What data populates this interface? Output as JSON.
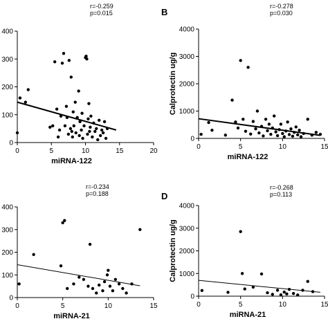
{
  "chart_data": [
    {
      "type": "scatter",
      "panel_label": "",
      "stats": [
        "r=-0.259",
        "p=0.015"
      ],
      "xlabel": "miRNA-122",
      "ylabel": "",
      "xlim": [
        0,
        20
      ],
      "ylim": [
        0,
        400
      ],
      "xticks": [
        "0",
        "5",
        "10",
        "15",
        "20"
      ],
      "yticks": [
        "0",
        "100",
        "200",
        "300",
        "400"
      ],
      "grid": false,
      "trend": {
        "x": [
          0,
          14.5
        ],
        "y": [
          145,
          45
        ],
        "width": 2
      },
      "points": [
        [
          0,
          35
        ],
        [
          0.4,
          160
        ],
        [
          1.2,
          145
        ],
        [
          1.6,
          190
        ],
        [
          4.8,
          55
        ],
        [
          5.2,
          60
        ],
        [
          5.5,
          290
        ],
        [
          5.8,
          120
        ],
        [
          6,
          20
        ],
        [
          6.2,
          45
        ],
        [
          6.4,
          95
        ],
        [
          6.6,
          285
        ],
        [
          6.8,
          320
        ],
        [
          7,
          60
        ],
        [
          7.2,
          130
        ],
        [
          7.3,
          90
        ],
        [
          7.5,
          30
        ],
        [
          7.6,
          295
        ],
        [
          7.8,
          50
        ],
        [
          7.9,
          235
        ],
        [
          8,
          40
        ],
        [
          8.1,
          20
        ],
        [
          8.2,
          110
        ],
        [
          8.3,
          60
        ],
        [
          8.5,
          145
        ],
        [
          8.6,
          35
        ],
        [
          8.8,
          90
        ],
        [
          9,
          185
        ],
        [
          9.1,
          25
        ],
        [
          9.2,
          75
        ],
        [
          9.4,
          45
        ],
        [
          9.5,
          105
        ],
        [
          9.6,
          15
        ],
        [
          9.8,
          60
        ],
        [
          10,
          305
        ],
        [
          10.1,
          310
        ],
        [
          10.2,
          300
        ],
        [
          10.3,
          30
        ],
        [
          10.4,
          85
        ],
        [
          10.5,
          140
        ],
        [
          10.6,
          40
        ],
        [
          10.7,
          55
        ],
        [
          10.8,
          95
        ],
        [
          11,
          20
        ],
        [
          11.2,
          70
        ],
        [
          11.4,
          40
        ],
        [
          11.6,
          50
        ],
        [
          11.8,
          10
        ],
        [
          12,
          80
        ],
        [
          12.2,
          25
        ],
        [
          12.4,
          45
        ],
        [
          12.6,
          35
        ],
        [
          12.8,
          75
        ],
        [
          13,
          15
        ],
        [
          13.2,
          50
        ]
      ]
    },
    {
      "type": "scatter",
      "panel_label": "B",
      "stats": [
        "r=-0.278",
        "p=0.030"
      ],
      "xlabel": "miRNA-122",
      "ylabel": "Calprotectin ug/g",
      "xlim": [
        0,
        15
      ],
      "ylim": [
        0,
        4000
      ],
      "xticks": [
        "0",
        "5",
        "10",
        "15"
      ],
      "yticks": [
        "0",
        "1000",
        "2000",
        "3000",
        "4000"
      ],
      "grid": false,
      "trend": {
        "x": [
          0,
          14.5
        ],
        "y": [
          720,
          110
        ],
        "width": 2
      },
      "points": [
        [
          0.3,
          150
        ],
        [
          1.2,
          580
        ],
        [
          1.6,
          300
        ],
        [
          3.2,
          120
        ],
        [
          4,
          1400
        ],
        [
          4.4,
          600
        ],
        [
          4.7,
          380
        ],
        [
          5,
          2850
        ],
        [
          5.3,
          700
        ],
        [
          5.6,
          260
        ],
        [
          5.9,
          2600
        ],
        [
          6.2,
          160
        ],
        [
          6.5,
          620
        ],
        [
          6.8,
          350
        ],
        [
          7,
          1000
        ],
        [
          7.2,
          200
        ],
        [
          7.5,
          440
        ],
        [
          7.7,
          90
        ],
        [
          8,
          700
        ],
        [
          8.2,
          280
        ],
        [
          8.4,
          520
        ],
        [
          8.6,
          150
        ],
        [
          8.8,
          380
        ],
        [
          9,
          820
        ],
        [
          9.2,
          240
        ],
        [
          9.4,
          100
        ],
        [
          9.6,
          320
        ],
        [
          9.8,
          520
        ],
        [
          10,
          180
        ],
        [
          10.2,
          60
        ],
        [
          10.4,
          270
        ],
        [
          10.6,
          600
        ],
        [
          10.8,
          140
        ],
        [
          11,
          350
        ],
        [
          11.2,
          80
        ],
        [
          11.4,
          220
        ],
        [
          11.6,
          420
        ],
        [
          11.8,
          130
        ],
        [
          12,
          300
        ],
        [
          12.2,
          60
        ],
        [
          12.5,
          180
        ],
        [
          13,
          700
        ],
        [
          13.5,
          120
        ],
        [
          14,
          220
        ],
        [
          14.5,
          150
        ]
      ]
    },
    {
      "type": "scatter",
      "panel_label": "",
      "stats": [
        "r=-0.234",
        "p=0.188"
      ],
      "xlabel": "miRNA-21",
      "ylabel": "",
      "xlim": [
        0,
        15
      ],
      "ylim": [
        0,
        400
      ],
      "xticks": [
        "0",
        "5",
        "10",
        "15"
      ],
      "yticks": [
        "0",
        "100",
        "200",
        "300",
        "400"
      ],
      "grid": false,
      "trend": {
        "x": [
          0,
          13.5
        ],
        "y": [
          145,
          52
        ],
        "width": 1
      },
      "points": [
        [
          0.2,
          60
        ],
        [
          1.8,
          190
        ],
        [
          4.8,
          140
        ],
        [
          5,
          330
        ],
        [
          5.2,
          340
        ],
        [
          5.5,
          40
        ],
        [
          6.2,
          60
        ],
        [
          6.8,
          90
        ],
        [
          7.3,
          80
        ],
        [
          7.8,
          50
        ],
        [
          8,
          235
        ],
        [
          8.3,
          40
        ],
        [
          8.7,
          20
        ],
        [
          9,
          55
        ],
        [
          9.4,
          30
        ],
        [
          9.6,
          70
        ],
        [
          9.9,
          100
        ],
        [
          10,
          120
        ],
        [
          10.2,
          50
        ],
        [
          10.5,
          30
        ],
        [
          10.8,
          80
        ],
        [
          11.2,
          60
        ],
        [
          11.6,
          40
        ],
        [
          12,
          20
        ],
        [
          12.6,
          60
        ],
        [
          13.5,
          300
        ]
      ]
    },
    {
      "type": "scatter",
      "panel_label": "D",
      "stats": [
        "r=-0.268",
        "p=0.113"
      ],
      "xlabel": "miRNA-21",
      "ylabel": "Calprotectin ug/g",
      "xlim": [
        0,
        15
      ],
      "ylim": [
        0,
        4000
      ],
      "xticks": [
        "0",
        "5",
        "10",
        "15"
      ],
      "yticks": [
        "0",
        "1000",
        "2000",
        "3000",
        "4000"
      ],
      "grid": false,
      "trend": {
        "x": [
          0,
          14.5
        ],
        "y": [
          700,
          170
        ],
        "width": 1
      },
      "points": [
        [
          0.4,
          250
        ],
        [
          3.5,
          170
        ],
        [
          5,
          2850
        ],
        [
          5.2,
          1000
        ],
        [
          5.5,
          320
        ],
        [
          6.5,
          400
        ],
        [
          7.5,
          980
        ],
        [
          8.2,
          150
        ],
        [
          8.8,
          80
        ],
        [
          9.4,
          260
        ],
        [
          9.8,
          60
        ],
        [
          10.2,
          180
        ],
        [
          10.5,
          100
        ],
        [
          10.8,
          300
        ],
        [
          11.3,
          120
        ],
        [
          11.8,
          50
        ],
        [
          12.4,
          260
        ],
        [
          13,
          650
        ],
        [
          13.6,
          200
        ]
      ]
    }
  ]
}
